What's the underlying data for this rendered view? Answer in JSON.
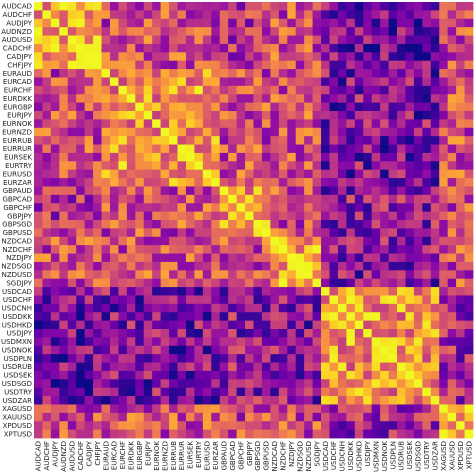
{
  "chart_data": {
    "type": "heatmap",
    "colormap": "plasma",
    "value_range": [
      -1,
      1
    ],
    "grid": false,
    "legend": "none",
    "labels": [
      "AUDCAD",
      "AUDCHF",
      "AUDJPY",
      "AUDNZD",
      "AUDUSD",
      "CADCHF",
      "CADJPY",
      "CHFJPY",
      "EURAUD",
      "EURCAD",
      "EURCHF",
      "EURDKK",
      "EURGBP",
      "EURJPY",
      "EURNOK",
      "EURNZD",
      "EURRUB",
      "EURRUR",
      "EURSEK",
      "EURTRY",
      "EURUSD",
      "EURZAR",
      "GBPAUD",
      "GBPCAD",
      "GBPCHF",
      "GBPJPY",
      "GBPSGD",
      "GBPUSD",
      "NZDCAD",
      "NZDCHF",
      "NZDJPY",
      "NZDSGD",
      "NZDUSD",
      "SGDJPY",
      "USDCAD",
      "USDCHF",
      "USDCNH",
      "USDDKK",
      "USDHKD",
      "USDJPY",
      "USDMXN",
      "USDNOK",
      "USDPLN",
      "USDRUB",
      "USDSEK",
      "USDSGD",
      "USDTRY",
      "USDZAR",
      "XAGUSD",
      "XAUUSD",
      "XPDUSD",
      "XPTUSD"
    ],
    "clusters": [
      {
        "from": 0,
        "to": 7,
        "level": 0.55
      },
      {
        "from": 8,
        "to": 21,
        "level": 0.45
      },
      {
        "from": 22,
        "to": 27,
        "level": 0.5
      },
      {
        "from": 28,
        "to": 33,
        "level": 0.5
      },
      {
        "from": 34,
        "to": 47,
        "level": 0.45
      },
      {
        "from": 48,
        "to": 51,
        "level": 0.7
      }
    ],
    "cross_clusters": [
      {
        "rows": [
          0,
          7
        ],
        "cols": [
          34,
          47
        ],
        "level": -0.55
      },
      {
        "rows": [
          8,
          21
        ],
        "cols": [
          34,
          47
        ],
        "level": -0.45
      },
      {
        "rows": [
          22,
          27
        ],
        "cols": [
          34,
          47
        ],
        "level": -0.35
      },
      {
        "rows": [
          28,
          33
        ],
        "cols": [
          34,
          47
        ],
        "level": -0.4
      },
      {
        "rows": [
          0,
          7
        ],
        "cols": [
          22,
          27
        ],
        "level": -0.2
      },
      {
        "rows": [
          48,
          51
        ],
        "cols": [
          34,
          47
        ],
        "level": -0.3
      }
    ],
    "palette": [
      "#0d0887",
      "#41049d",
      "#6a00a8",
      "#8f0da4",
      "#b12a90",
      "#cc4778",
      "#e16462",
      "#f2844b",
      "#fca636",
      "#fcce25",
      "#f0f921"
    ]
  }
}
